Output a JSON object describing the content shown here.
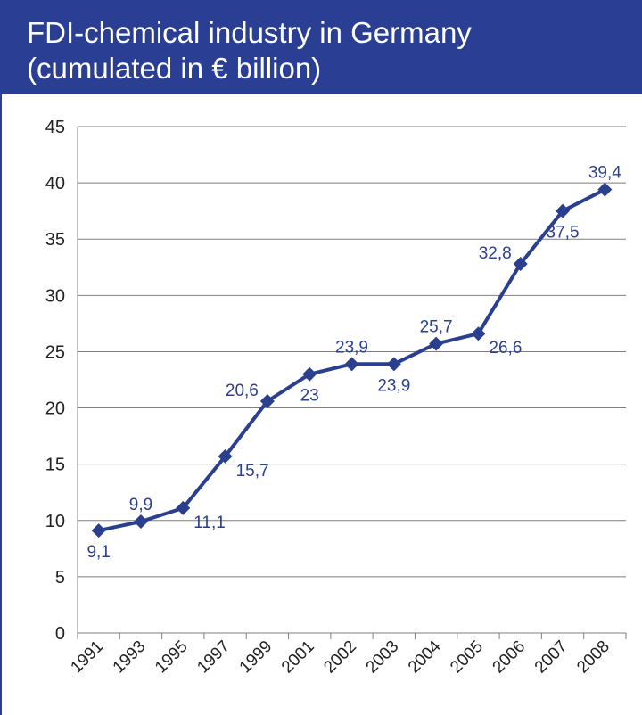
{
  "title": {
    "line1": "FDI-chemical industry in Germany",
    "line2": "(cumulated in € billion)"
  },
  "colors": {
    "accent": "#2a3f93",
    "series": "#2b3f8f",
    "grid": "#7f7f7f",
    "label": "#2b3f8f",
    "background": "#ffffff"
  },
  "chart_data": {
    "type": "line",
    "title": "FDI-chemical industry in Germany (cumulated in € billion)",
    "categories": [
      "1991",
      "1993",
      "1995",
      "1997",
      "1999",
      "2001",
      "2002",
      "2003",
      "2004",
      "2005",
      "2006",
      "2007",
      "2008"
    ],
    "series": [
      {
        "values": [
          9.1,
          9.9,
          11.1,
          15.7,
          20.6,
          23,
          23.9,
          23.9,
          25.7,
          26.6,
          32.8,
          37.5,
          39.4
        ],
        "labels": [
          "9,1",
          "9,9",
          "11,1",
          "15,7",
          "20,6",
          "23",
          "23,9",
          "23,9",
          "25,7",
          "26,6",
          "32,8",
          "37,5",
          "39,4"
        ],
        "label_positions": [
          "below",
          "above",
          "right",
          "right",
          "left",
          "below",
          "above",
          "below",
          "above",
          "right",
          "left",
          "below",
          "above"
        ]
      }
    ],
    "ylim": [
      0,
      45
    ],
    "yticks": [
      0,
      5,
      10,
      15,
      20,
      25,
      30,
      35,
      40,
      45
    ],
    "grid": true,
    "marker": "diamond"
  }
}
